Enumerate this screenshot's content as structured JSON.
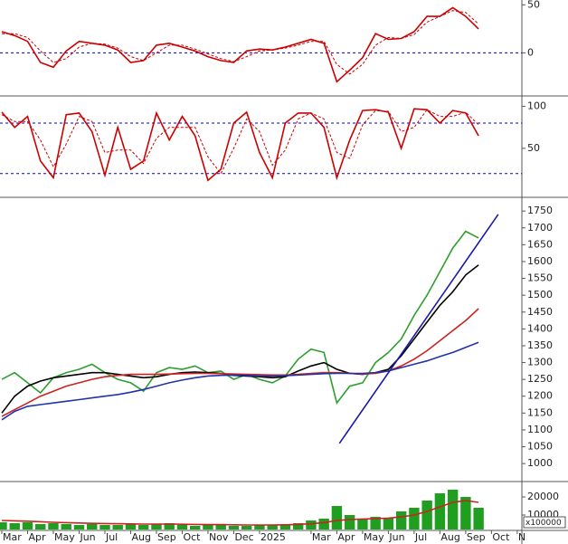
{
  "chart_data": [
    {
      "type": "line",
      "x": [
        0,
        0.5,
        1,
        1.5,
        2,
        2.5,
        3,
        3.5,
        4,
        4.5,
        5,
        5.5,
        6,
        6.5,
        7,
        7.5,
        8,
        8.5,
        9,
        9.5,
        10,
        10.5,
        11,
        11.5,
        12,
        12.5,
        13,
        13.5,
        14,
        14.5,
        15,
        15.5,
        16,
        16.5,
        17,
        17.5,
        18,
        18.5
      ],
      "xlim": [
        -0.07,
        20.18
      ],
      "ylim": [
        -42,
        55
      ],
      "yticks": [
        0,
        50
      ],
      "hlines": [
        0
      ],
      "hline_color": "#0000cc",
      "series": [
        {
          "color": "#cc0000",
          "values": [
            22,
            18,
            12,
            -10,
            -15,
            2,
            12,
            10,
            8,
            3,
            -10,
            -8,
            8,
            10,
            6,
            2,
            -4,
            -8,
            -10,
            2,
            4,
            3,
            6,
            10,
            14,
            10,
            -30,
            -18,
            -5,
            20,
            14,
            15,
            22,
            38,
            38,
            47,
            38,
            25
          ]
        },
        {
          "color": "#cc0000",
          "dashed": true,
          "values": [
            20,
            20,
            16,
            2,
            -10,
            -6,
            6,
            10,
            9,
            5,
            -4,
            -8,
            0,
            8,
            8,
            4,
            -1,
            -6,
            -9,
            -4,
            2,
            3,
            5,
            8,
            12,
            12,
            -12,
            -22,
            -12,
            8,
            16,
            15,
            19,
            32,
            38,
            44,
            42,
            30
          ]
        }
      ]
    },
    {
      "type": "line",
      "x": [
        0,
        0.5,
        1,
        1.5,
        2,
        2.5,
        3,
        3.5,
        4,
        4.5,
        5,
        5.5,
        6,
        6.5,
        7,
        7.5,
        8,
        8.5,
        9,
        9.5,
        10,
        10.5,
        11,
        11.5,
        12,
        12.5,
        13,
        13.5,
        14,
        14.5,
        15,
        15.5,
        16,
        16.5,
        17,
        17.5,
        18,
        18.5
      ],
      "xlim": [
        -0.07,
        20.18
      ],
      "ylim": [
        -5,
        108
      ],
      "yticks": [
        50,
        100
      ],
      "hlines": [
        20,
        80
      ],
      "hline_color": "#0000cc",
      "series": [
        {
          "color": "#cc0000",
          "values": [
            93,
            75,
            88,
            35,
            15,
            90,
            92,
            70,
            18,
            75,
            25,
            35,
            92,
            60,
            88,
            65,
            12,
            25,
            80,
            93,
            45,
            15,
            80,
            92,
            92,
            75,
            15,
            60,
            95,
            96,
            93,
            50,
            97,
            96,
            80,
            95,
            92,
            65
          ]
        },
        {
          "color": "#cc0000",
          "dashed": true,
          "values": [
            90,
            82,
            82,
            60,
            28,
            55,
            88,
            82,
            45,
            48,
            48,
            32,
            62,
            75,
            75,
            75,
            40,
            20,
            50,
            85,
            70,
            30,
            48,
            85,
            92,
            85,
            45,
            38,
            78,
            95,
            94,
            70,
            75,
            96,
            88,
            88,
            93,
            78
          ]
        }
      ]
    },
    {
      "type": "line",
      "x": [
        0,
        0.5,
        1,
        1.5,
        2,
        2.5,
        3,
        3.5,
        4,
        4.5,
        5,
        5.5,
        6,
        6.5,
        7,
        7.5,
        8,
        8.5,
        9,
        9.5,
        10,
        10.5,
        11,
        11.5,
        12,
        12.5,
        13,
        13.5,
        14,
        14.5,
        15,
        15.5,
        16,
        16.5,
        17,
        17.5,
        18,
        18.5
      ],
      "xlim": [
        -0.07,
        20.18
      ],
      "ylim": [
        952,
        1780
      ],
      "yticks": [
        1000,
        1050,
        1100,
        1150,
        1200,
        1250,
        1300,
        1350,
        1400,
        1450,
        1500,
        1550,
        1600,
        1650,
        1700,
        1750
      ],
      "series": [
        {
          "color": "#2e9e2e",
          "values": [
            1250,
            1270,
            1240,
            1210,
            1255,
            1270,
            1280,
            1295,
            1270,
            1250,
            1240,
            1215,
            1270,
            1285,
            1280,
            1290,
            1270,
            1275,
            1250,
            1265,
            1250,
            1240,
            1260,
            1310,
            1340,
            1330,
            1180,
            1230,
            1240,
            1300,
            1330,
            1370,
            1440,
            1500,
            1570,
            1640,
            1690,
            1670
          ]
        },
        {
          "color": "#000000",
          "values": [
            1150,
            1200,
            1230,
            1245,
            1255,
            1260,
            1265,
            1270,
            1270,
            1265,
            1260,
            1255,
            1258,
            1265,
            1270,
            1272,
            1270,
            1268,
            1262,
            1260,
            1258,
            1255,
            1258,
            1275,
            1290,
            1300,
            1280,
            1268,
            1265,
            1270,
            1280,
            1320,
            1370,
            1420,
            1470,
            1510,
            1560,
            1590
          ]
        },
        {
          "color": "#cc2222",
          "values": [
            1140,
            1160,
            1180,
            1200,
            1215,
            1230,
            1240,
            1250,
            1258,
            1262,
            1265,
            1265,
            1265,
            1266,
            1267,
            1268,
            1268,
            1267,
            1266,
            1265,
            1264,
            1263,
            1263,
            1265,
            1268,
            1270,
            1270,
            1268,
            1266,
            1268,
            1275,
            1290,
            1310,
            1335,
            1365,
            1395,
            1425,
            1460
          ]
        },
        {
          "color": "#2233aa",
          "values": [
            1130,
            1155,
            1170,
            1175,
            1180,
            1185,
            1190,
            1195,
            1200,
            1205,
            1212,
            1220,
            1230,
            1240,
            1248,
            1255,
            1260,
            1262,
            1263,
            1262,
            1260,
            1260,
            1261,
            1263,
            1265,
            1267,
            1268,
            1268,
            1268,
            1270,
            1275,
            1285,
            1295,
            1305,
            1318,
            1330,
            1345,
            1360
          ]
        },
        {
          "color": "#1a1aaa",
          "x": [
            13.1,
            19.26
          ],
          "values": [
            1060,
            1740
          ]
        }
      ]
    },
    {
      "type": "bar",
      "x": [
        0,
        0.5,
        1,
        1.5,
        2,
        2.5,
        3,
        3.5,
        4,
        4.5,
        5,
        5.5,
        6,
        6.5,
        7,
        7.5,
        8,
        8.5,
        9,
        9.5,
        10,
        10.5,
        11,
        11.5,
        12,
        12.5,
        13,
        13.5,
        14,
        14.5,
        15,
        15.5,
        16,
        16.5,
        17,
        17.5,
        18,
        18.5
      ],
      "xlim": [
        -0.07,
        20.18
      ],
      "ylim": [
        2000,
        27000
      ],
      "yticks": [
        10000,
        20000
      ],
      "unit_label": "x100000",
      "color": "#1f9e1f",
      "values": [
        6000,
        5500,
        6000,
        5000,
        5500,
        5000,
        4500,
        5000,
        4500,
        4500,
        5000,
        4500,
        5000,
        5500,
        4500,
        4000,
        4500,
        5000,
        4000,
        4000,
        4500,
        4500,
        5000,
        5500,
        7000,
        8000,
        15000,
        10000,
        8000,
        9000,
        8500,
        12000,
        14000,
        18000,
        22000,
        24000,
        20000,
        14000
      ],
      "series": [
        {
          "color": "#cc2222",
          "values": [
            7000,
            6800,
            6600,
            6300,
            6000,
            5800,
            5600,
            5400,
            5300,
            5200,
            5100,
            5000,
            5000,
            5000,
            4900,
            4800,
            4700,
            4700,
            4600,
            4500,
            4500,
            4500,
            4600,
            4800,
            5200,
            5800,
            7000,
            7500,
            7800,
            8000,
            8300,
            9000,
            10000,
            12000,
            14500,
            17000,
            18000,
            17000
          ]
        }
      ],
      "xticks": [
        {
          "value": 0,
          "label": "Mar"
        },
        {
          "value": 1,
          "label": "Apr"
        },
        {
          "value": 2,
          "label": "May"
        },
        {
          "value": 3,
          "label": "Jun"
        },
        {
          "value": 4,
          "label": "Jul"
        },
        {
          "value": 5,
          "label": "Aug"
        },
        {
          "value": 6,
          "label": "Sep"
        },
        {
          "value": 7,
          "label": "Oct"
        },
        {
          "value": 8,
          "label": "Nov"
        },
        {
          "value": 9,
          "label": "Dec"
        },
        {
          "value": 10,
          "label": "2025"
        },
        {
          "value": 12,
          "label": "Mar"
        },
        {
          "value": 13,
          "label": "Apr"
        },
        {
          "value": 14,
          "label": "May"
        },
        {
          "value": 15,
          "label": "Jun"
        },
        {
          "value": 16,
          "label": "Jul"
        },
        {
          "value": 17,
          "label": "Aug"
        },
        {
          "value": 18,
          "label": "Sep"
        },
        {
          "value": 19,
          "label": "Oct"
        },
        {
          "value": 20,
          "label": "N"
        }
      ]
    }
  ]
}
